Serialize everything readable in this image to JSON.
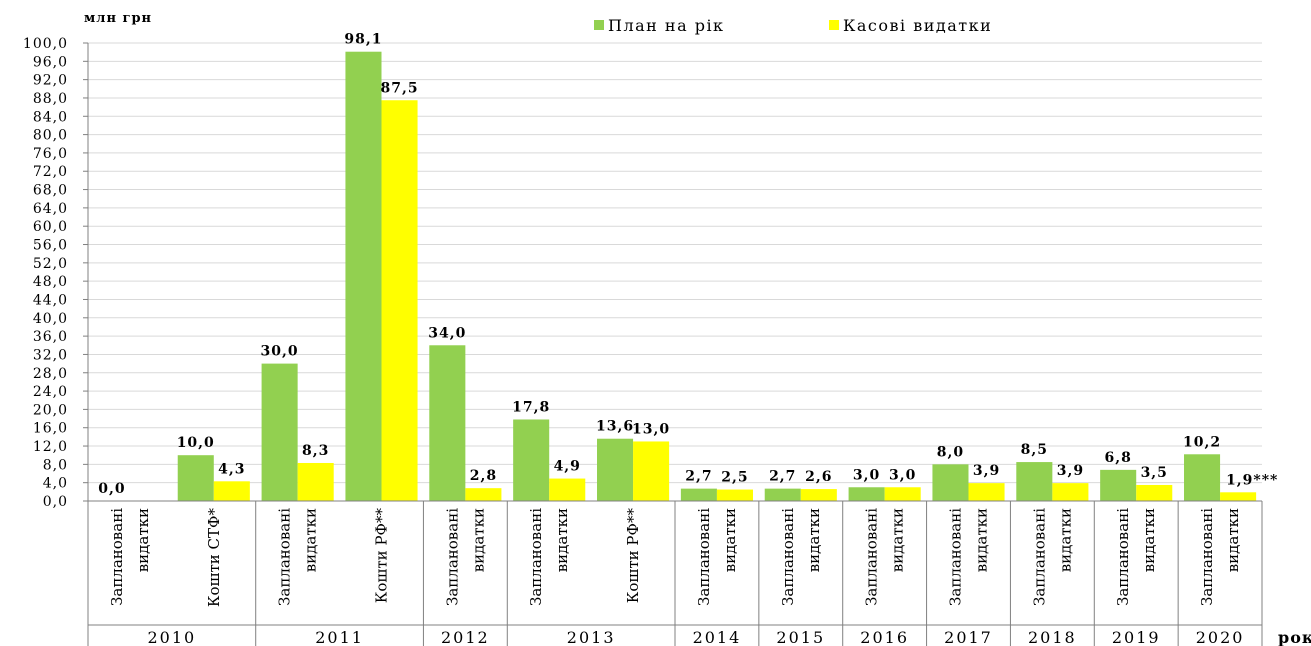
{
  "chart_data": {
    "type": "bar",
    "ylabel": "млн грн",
    "xlabel": "роки",
    "ylim": [
      0,
      100
    ],
    "ytick_step": 4,
    "grid": true,
    "legend_position": "top-center",
    "series": [
      {
        "name": "План на рік",
        "color": "#92d050"
      },
      {
        "name": "Касові видатки",
        "color": "#ffff00"
      }
    ],
    "groups": [
      {
        "year": "2010",
        "categories": [
          {
            "label": [
              "Заплановані",
              "видатки"
            ],
            "plan": 0.0,
            "plan_label": "0,0",
            "cash": null,
            "cash_label": ""
          },
          {
            "label": [
              "Кошти СТФ*"
            ],
            "plan": 10.0,
            "plan_label": "10,0",
            "cash": 4.3,
            "cash_label": "4,3"
          }
        ]
      },
      {
        "year": "2011",
        "categories": [
          {
            "label": [
              "Заплановані",
              "видатки"
            ],
            "plan": 30.0,
            "plan_label": "30,0",
            "cash": 8.3,
            "cash_label": "8,3"
          },
          {
            "label": [
              "Кошти РФ**"
            ],
            "plan": 98.1,
            "plan_label": "98,1",
            "cash": 87.5,
            "cash_label": "87,5"
          }
        ]
      },
      {
        "year": "2012",
        "categories": [
          {
            "label": [
              "Заплановані",
              "видатки"
            ],
            "plan": 34.0,
            "plan_label": "34,0",
            "cash": 2.8,
            "cash_label": "2,8"
          }
        ]
      },
      {
        "year": "2013",
        "categories": [
          {
            "label": [
              "Заплановані",
              "видатки"
            ],
            "plan": 17.8,
            "plan_label": "17,8",
            "cash": 4.9,
            "cash_label": "4,9"
          },
          {
            "label": [
              "Кошти РФ**"
            ],
            "plan": 13.6,
            "plan_label": "13,6",
            "cash": 13.0,
            "cash_label": "13,0"
          }
        ]
      },
      {
        "year": "2014",
        "categories": [
          {
            "label": [
              "Заплановані",
              "видатки"
            ],
            "plan": 2.7,
            "plan_label": "2,7",
            "cash": 2.5,
            "cash_label": "2,5"
          }
        ]
      },
      {
        "year": "2015",
        "categories": [
          {
            "label": [
              "Заплановані",
              "видатки"
            ],
            "plan": 2.7,
            "plan_label": "2,7",
            "cash": 2.6,
            "cash_label": "2,6"
          }
        ]
      },
      {
        "year": "2016",
        "categories": [
          {
            "label": [
              "Заплановані",
              "видатки"
            ],
            "plan": 3.0,
            "plan_label": "3,0",
            "cash": 3.0,
            "cash_label": "3,0"
          }
        ]
      },
      {
        "year": "2017",
        "categories": [
          {
            "label": [
              "Заплановані",
              "видатки"
            ],
            "plan": 8.0,
            "plan_label": "8,0",
            "cash": 3.9,
            "cash_label": "3,9"
          }
        ]
      },
      {
        "year": "2018",
        "categories": [
          {
            "label": [
              "Заплановані",
              "видатки"
            ],
            "plan": 8.5,
            "plan_label": "8,5",
            "cash": 3.9,
            "cash_label": "3,9"
          }
        ]
      },
      {
        "year": "2019",
        "categories": [
          {
            "label": [
              "Заплановані",
              "видатки"
            ],
            "plan": 6.8,
            "plan_label": "6,8",
            "cash": 3.5,
            "cash_label": "3,5"
          }
        ]
      },
      {
        "year": "2020",
        "categories": [
          {
            "label": [
              "Заплановані",
              "видатки"
            ],
            "plan": 10.2,
            "plan_label": "10,2",
            "cash": 1.9,
            "cash_label": "1,9***"
          }
        ]
      }
    ]
  }
}
